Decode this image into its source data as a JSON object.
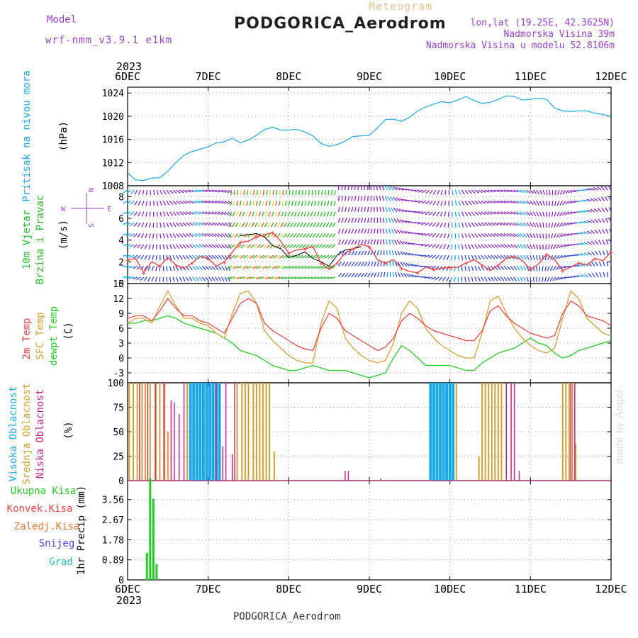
{
  "header": {
    "model_label": "Model",
    "model_version": "wrf-nmm_v3.9.1 e1km",
    "product": "Meteogram",
    "station": "PODGORICA_Aerodrom",
    "lonlat": "lon,lat (19.25E, 42.3625N)",
    "elevation": "Nadmorska Visina 39m",
    "model_elevation": "Nadmorska Visina u modelu 52.8106m"
  },
  "footer": {
    "station": "PODGORICA_Aerodrom",
    "credit": "made by Angel"
  },
  "colors": {
    "pressure": "#1aa8e8",
    "wind": "#22bb22",
    "temp2m": "#ee4444",
    "sfc": "#d4a030",
    "dewpt": "#22cc22",
    "high_cloud": "#1aa8e8",
    "mid_cloud": "#d4a030",
    "low_cloud": "#cc2288",
    "total_precip": "#22cc22",
    "conv_precip": "#ee4444",
    "freezing_precip": "#ee7733",
    "snow": "#4444dd",
    "hail": "#22bbbb"
  },
  "chart_data": [
    {
      "type": "line",
      "name": "pressure",
      "ylabel_left": "Pritisak na nivou mora",
      "ylabel": "(hPa)",
      "top_year": "2023",
      "x_ticks": [
        "6DEC",
        "7DEC",
        "8DEC",
        "9DEC",
        "10DEC",
        "11DEC",
        "12DEC"
      ],
      "xlim": [
        0,
        6
      ],
      "ylim": [
        1008,
        1025
      ],
      "y_ticks": [
        1008,
        1012,
        1016,
        1020,
        1024
      ],
      "grid": true,
      "x": [
        0,
        0.1,
        0.2,
        0.3,
        0.4,
        0.5,
        0.6,
        0.7,
        0.8,
        0.9,
        1.0,
        1.1,
        1.2,
        1.3,
        1.4,
        1.5,
        1.6,
        1.7,
        1.8,
        1.9,
        2.0,
        2.1,
        2.2,
        2.3,
        2.4,
        2.5,
        2.6,
        2.7,
        2.8,
        2.9,
        3.0,
        3.1,
        3.2,
        3.3,
        3.4,
        3.5,
        3.6,
        3.7,
        3.8,
        3.9,
        4.0,
        4.1,
        4.2,
        4.3,
        4.4,
        4.5,
        4.6,
        4.7,
        4.8,
        4.9,
        5.0,
        5.1,
        5.2,
        5.3,
        5.4,
        5.5,
        5.6,
        5.7,
        5.8,
        5.9,
        6.0
      ],
      "values": [
        1010.2,
        1009.0,
        1008.9,
        1009.3,
        1009.4,
        1010.5,
        1012.0,
        1013.3,
        1013.9,
        1014.3,
        1014.7,
        1015.4,
        1015.6,
        1016.2,
        1015.4,
        1015.9,
        1016.7,
        1017.7,
        1018.1,
        1017.6,
        1017.6,
        1017.7,
        1017.3,
        1016.6,
        1015.3,
        1014.8,
        1015.1,
        1015.7,
        1016.5,
        1016.6,
        1016.7,
        1018.0,
        1019.4,
        1019.5,
        1019.1,
        1019.8,
        1020.9,
        1021.6,
        1022.1,
        1022.5,
        1022.3,
        1022.8,
        1023.4,
        1022.7,
        1022.2,
        1022.4,
        1022.9,
        1023.5,
        1023.4,
        1022.8,
        1022.9,
        1023.1,
        1022.9,
        1021.4,
        1020.9,
        1020.8,
        1020.9,
        1020.9,
        1020.5,
        1020.3,
        1019.9
      ]
    },
    {
      "type": "line",
      "name": "wind",
      "ylabel_left": [
        "10m Vjetar",
        "Brzina i Pravac"
      ],
      "ylabel": "(m/s)",
      "compass": [
        "N",
        "E",
        "S",
        "W"
      ],
      "xlim": [
        0,
        6
      ],
      "ylim": [
        0,
        9
      ],
      "y_ticks": [
        0,
        2,
        4,
        6,
        8
      ],
      "grid": true,
      "series": [
        {
          "values": [
            2.2,
            2.3,
            1.0,
            2.0,
            1.6,
            2.4,
            1.7,
            1.4,
            1.9,
            2.5,
            2.3,
            1.6,
            2.0,
            2.9,
            3.8,
            3.9,
            4.3,
            4.5,
            4.7,
            3.9,
            2.8,
            3.1,
            3.2,
            3.4,
            1.9,
            1.3,
            1.9,
            2.8,
            3.2,
            3.6,
            3.4,
            2.2,
            1.9,
            2.2,
            1.4,
            1.1,
            1.0,
            1.5,
            1.3,
            1.4,
            1.5,
            1.5,
            1.9,
            2.2,
            1.7,
            1.2,
            1.7,
            2.3,
            2.5,
            2.1,
            1.3,
            1.8,
            2.7,
            2.2,
            1.2,
            1.5,
            1.9,
            1.7,
            2.3,
            2.1,
            2.9
          ]
        },
        {
          "values": [
            null,
            null,
            null,
            null,
            null,
            null,
            null,
            null,
            null,
            null,
            null,
            null,
            null,
            null,
            4.4,
            4.5,
            4.6,
            4.3,
            3.5,
            3.2,
            2.4,
            2.6,
            2.9,
            2.3,
            2.0,
            1.6,
            2.6,
            3.1,
            3.2,
            3.4,
            null,
            null,
            null,
            null,
            null,
            null,
            null,
            null,
            null,
            null,
            null,
            null,
            null,
            null,
            null,
            null,
            null,
            null,
            null,
            null,
            null,
            null,
            null,
            null,
            null,
            null,
            null,
            null,
            null,
            null,
            null
          ]
        }
      ]
    },
    {
      "type": "line",
      "name": "temperature",
      "ylabel_left": [
        "2m Temp",
        "SFC Temp",
        "dewpt Temp"
      ],
      "ylabel": "(C)",
      "xlim": [
        0,
        6
      ],
      "ylim": [
        -5,
        15
      ],
      "y_ticks": [
        -3,
        0,
        3,
        6,
        9,
        12,
        15
      ],
      "grid": true,
      "series": [
        {
          "name": "2m Temp",
          "values": [
            8.0,
            8.5,
            8.5,
            7.5,
            9.5,
            12.0,
            10.0,
            8.5,
            8.5,
            7.5,
            7.0,
            6.0,
            5.0,
            8.0,
            11.0,
            12.0,
            11.0,
            7.0,
            5.5,
            4.5,
            3.5,
            2.5,
            1.8,
            1.5,
            6.0,
            9.0,
            8.0,
            5.5,
            4.5,
            3.5,
            2.5,
            1.5,
            2.2,
            4.0,
            7.5,
            9.0,
            8.0,
            6.5,
            5.5,
            5.0,
            4.5,
            4.0,
            3.5,
            3.5,
            5.5,
            9.5,
            10.5,
            8.5,
            7.0,
            6.0,
            5.0,
            4.5,
            4.0,
            4.5,
            9.0,
            11.5,
            10.5,
            8.5,
            8.0,
            7.5,
            6.5
          ]
        },
        {
          "name": "SFC Temp",
          "values": [
            7.0,
            8.0,
            8.0,
            7.0,
            10.5,
            13.5,
            10.5,
            8.0,
            8.0,
            7.0,
            6.5,
            5.0,
            4.0,
            9.0,
            13.0,
            13.5,
            11.0,
            5.5,
            3.5,
            2.0,
            0.5,
            -0.5,
            -1.0,
            -1.0,
            7.0,
            11.5,
            10.0,
            4.0,
            2.0,
            0.5,
            -0.5,
            -1.0,
            -0.5,
            3.0,
            9.0,
            11.5,
            10.0,
            6.0,
            4.0,
            2.5,
            1.5,
            0.5,
            0.0,
            0.0,
            5.0,
            11.5,
            12.5,
            9.0,
            6.0,
            4.0,
            2.5,
            1.5,
            1.0,
            2.0,
            8.0,
            13.5,
            12.0,
            8.0,
            6.5,
            5.0,
            4.5
          ]
        },
        {
          "name": "dewpt Temp",
          "values": [
            7.0,
            7.0,
            7.5,
            7.5,
            8.0,
            8.5,
            8.0,
            7.0,
            6.5,
            6.0,
            5.5,
            5.0,
            4.0,
            3.0,
            1.5,
            1.0,
            0.5,
            -0.5,
            -1.5,
            -2.0,
            -2.5,
            -2.5,
            -2.0,
            -1.5,
            -2.0,
            -2.5,
            -2.5,
            -2.5,
            -3.0,
            -3.5,
            -4.0,
            -3.5,
            -3.0,
            0.0,
            2.5,
            1.5,
            0.0,
            -1.5,
            -1.5,
            -1.5,
            -1.5,
            -2.0,
            -2.5,
            -2.5,
            -1.0,
            0.0,
            1.0,
            1.5,
            2.0,
            3.0,
            4.0,
            3.0,
            2.5,
            1.0,
            0.0,
            0.5,
            1.5,
            2.0,
            2.5,
            3.0,
            3.5
          ]
        }
      ]
    },
    {
      "type": "bar",
      "name": "cloud",
      "ylabel_left": [
        "Visoka Oblacnost",
        "Srednja Oblacnost",
        "Niska Oblacnost"
      ],
      "ylabel": "(%)",
      "xlim": [
        0,
        6
      ],
      "ylim": [
        0,
        100
      ],
      "y_ticks": [
        0,
        25,
        50,
        75,
        100
      ],
      "grid": true,
      "series": [
        {
          "name": "Visoka Oblacnost",
          "x": [
            0.78,
            0.82,
            0.86,
            0.9,
            0.94,
            0.98,
            1.02,
            1.06,
            1.1,
            1.14,
            3.76,
            3.8,
            3.84,
            3.88,
            3.92,
            3.96,
            4.0,
            4.04
          ],
          "values": [
            100,
            100,
            100,
            100,
            100,
            100,
            100,
            100,
            100,
            100,
            100,
            100,
            100,
            100,
            100,
            100,
            100,
            100
          ]
        },
        {
          "name": "Srednja Oblacnost",
          "x": [
            0.02,
            0.07,
            0.12,
            0.18,
            0.22,
            0.28,
            0.34,
            0.4,
            0.46,
            0.5,
            0.74,
            1.36,
            1.42,
            1.46,
            1.5,
            1.56,
            1.6,
            1.64,
            1.68,
            1.72,
            1.76,
            1.82,
            4.08,
            4.36,
            4.4,
            4.44,
            4.48,
            4.52,
            4.56,
            4.6,
            4.64,
            5.4,
            5.44,
            5.48,
            5.52,
            5.56
          ],
          "values": [
            100,
            100,
            100,
            100,
            100,
            100,
            100,
            100,
            100,
            50,
            100,
            100,
            100,
            100,
            100,
            100,
            100,
            100,
            100,
            100,
            100,
            30,
            100,
            25,
            100,
            100,
            100,
            100,
            100,
            100,
            100,
            100,
            100,
            100,
            100,
            38
          ]
        },
        {
          "name": "Niska Oblacnost",
          "x": [
            0.15,
            0.25,
            0.35,
            0.45,
            0.54,
            0.58,
            0.64,
            0.7,
            1.1,
            1.18,
            1.22,
            1.3,
            1.33,
            2.7,
            2.74,
            3.14,
            4.7,
            4.76,
            4.8,
            4.86,
            5.5,
            5.55
          ],
          "values": [
            100,
            100,
            100,
            100,
            82,
            80,
            68,
            100,
            100,
            35,
            100,
            27,
            100,
            10,
            10,
            2,
            100,
            100,
            100,
            10,
            100,
            100
          ]
        }
      ]
    },
    {
      "type": "bar",
      "name": "precip",
      "ylabel_left": [
        "Ukupna Kisa",
        "Konvek.Kisa",
        "Zaledj.Kisa",
        "Snijeg",
        "Grad"
      ],
      "ylabel": "1hr Precip (mm)",
      "bottom_year": "2023",
      "x_ticks": [
        "6DEC",
        "7DEC",
        "8DEC",
        "9DEC",
        "10DEC",
        "11DEC",
        "12DEC"
      ],
      "xlim": [
        0,
        6
      ],
      "ylim": [
        0,
        4.4
      ],
      "y_ticks": [
        "0",
        "0.89",
        "1.78",
        "2.67",
        "3.56"
      ],
      "grid": true,
      "series": [
        {
          "name": "Ukupna Kisa",
          "x": [
            0.24,
            0.28,
            0.32,
            0.36
          ],
          "values": [
            1.2,
            4.5,
            3.6,
            0.7
          ]
        }
      ]
    }
  ]
}
